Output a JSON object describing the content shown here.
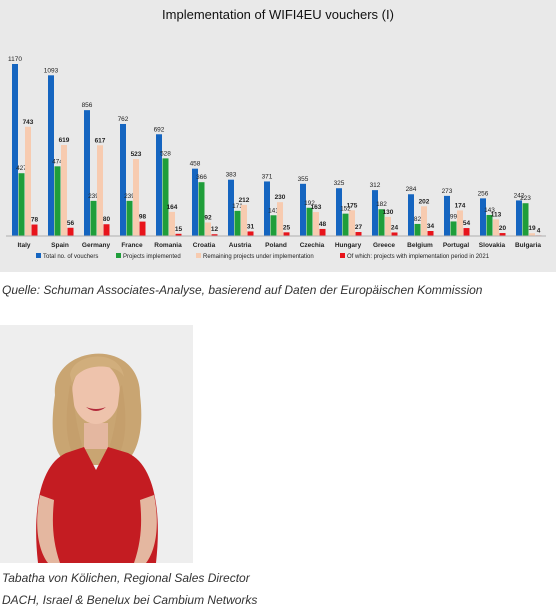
{
  "chart_data": {
    "type": "bar",
    "title": "Implementation of WIFI4EU vouchers (I)",
    "categories": [
      "Italy",
      "Spain",
      "Germany",
      "France",
      "Romania",
      "Croatia",
      "Austria",
      "Poland",
      "Czechia",
      "Hungary",
      "Greece",
      "Belgium",
      "Portugal",
      "Slovakia",
      "Bulgaria"
    ],
    "series": [
      {
        "name": "Total no. of vouchers",
        "color": "#1565c0",
        "values": [
          1170,
          1093,
          856,
          762,
          692,
          458,
          383,
          371,
          355,
          325,
          312,
          284,
          273,
          256,
          242
        ]
      },
      {
        "name": "Projects implemented",
        "color": "#1f9e3a",
        "values": [
          427,
          474,
          239,
          239,
          528,
          366,
          171,
          141,
          192,
          152,
          182,
          82,
          99,
          143,
          223
        ]
      },
      {
        "name": "Remaining projects under implementation",
        "color": "#f7cbb0",
        "values": [
          743,
          619,
          617,
          523,
          164,
          92,
          212,
          230,
          163,
          175,
          130,
          202,
          174,
          113,
          19
        ]
      },
      {
        "name": "Of which: projects with implementation period in 2021",
        "color": "#e8141b",
        "values": [
          78,
          56,
          80,
          98,
          15,
          12,
          31,
          25,
          48,
          27,
          24,
          34,
          54,
          20,
          4
        ]
      }
    ],
    "ylim": [
      0,
      1200
    ],
    "grid": false,
    "legend_position": "bottom",
    "xlabel": "",
    "ylabel": ""
  },
  "captions": {
    "source": "Quelle: Schuman Associates-Analyse, basierend auf Daten der Europäischen Kommission",
    "person_line1": "Tabatha von Kölichen, Regional Sales Director",
    "person_line2": "DACH, Israel & Benelux bei Cambium Networks"
  }
}
